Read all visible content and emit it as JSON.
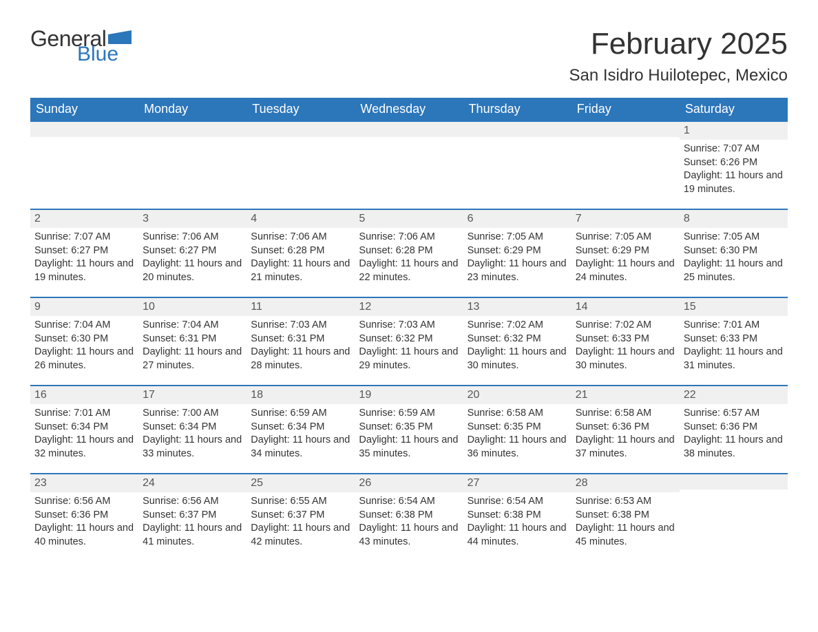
{
  "brand": {
    "word1": "General",
    "word2": "Blue",
    "flag_color": "#2c76ba"
  },
  "title": "February 2025",
  "location": "San Isidro Huilotepec, Mexico",
  "colors": {
    "header_bg": "#2c76ba",
    "header_text": "#ffffff",
    "week_divider": "#2c76ba",
    "daynum_bg": "#f0f0f0",
    "text": "#333333",
    "background": "#ffffff"
  },
  "typography": {
    "title_size_pt": 33,
    "location_size_pt": 18,
    "weekday_size_pt": 14,
    "body_size_pt": 11
  },
  "calendar": {
    "weekday_labels": [
      "Sunday",
      "Monday",
      "Tuesday",
      "Wednesday",
      "Thursday",
      "Friday",
      "Saturday"
    ],
    "first_weekday_index": 6,
    "weeks": [
      [
        null,
        null,
        null,
        null,
        null,
        null,
        {
          "n": 1,
          "sunrise": "7:07 AM",
          "sunset": "6:26 PM",
          "daylight": "11 hours and 19 minutes."
        }
      ],
      [
        {
          "n": 2,
          "sunrise": "7:07 AM",
          "sunset": "6:27 PM",
          "daylight": "11 hours and 19 minutes."
        },
        {
          "n": 3,
          "sunrise": "7:06 AM",
          "sunset": "6:27 PM",
          "daylight": "11 hours and 20 minutes."
        },
        {
          "n": 4,
          "sunrise": "7:06 AM",
          "sunset": "6:28 PM",
          "daylight": "11 hours and 21 minutes."
        },
        {
          "n": 5,
          "sunrise": "7:06 AM",
          "sunset": "6:28 PM",
          "daylight": "11 hours and 22 minutes."
        },
        {
          "n": 6,
          "sunrise": "7:05 AM",
          "sunset": "6:29 PM",
          "daylight": "11 hours and 23 minutes."
        },
        {
          "n": 7,
          "sunrise": "7:05 AM",
          "sunset": "6:29 PM",
          "daylight": "11 hours and 24 minutes."
        },
        {
          "n": 8,
          "sunrise": "7:05 AM",
          "sunset": "6:30 PM",
          "daylight": "11 hours and 25 minutes."
        }
      ],
      [
        {
          "n": 9,
          "sunrise": "7:04 AM",
          "sunset": "6:30 PM",
          "daylight": "11 hours and 26 minutes."
        },
        {
          "n": 10,
          "sunrise": "7:04 AM",
          "sunset": "6:31 PM",
          "daylight": "11 hours and 27 minutes."
        },
        {
          "n": 11,
          "sunrise": "7:03 AM",
          "sunset": "6:31 PM",
          "daylight": "11 hours and 28 minutes."
        },
        {
          "n": 12,
          "sunrise": "7:03 AM",
          "sunset": "6:32 PM",
          "daylight": "11 hours and 29 minutes."
        },
        {
          "n": 13,
          "sunrise": "7:02 AM",
          "sunset": "6:32 PM",
          "daylight": "11 hours and 30 minutes."
        },
        {
          "n": 14,
          "sunrise": "7:02 AM",
          "sunset": "6:33 PM",
          "daylight": "11 hours and 30 minutes."
        },
        {
          "n": 15,
          "sunrise": "7:01 AM",
          "sunset": "6:33 PM",
          "daylight": "11 hours and 31 minutes."
        }
      ],
      [
        {
          "n": 16,
          "sunrise": "7:01 AM",
          "sunset": "6:34 PM",
          "daylight": "11 hours and 32 minutes."
        },
        {
          "n": 17,
          "sunrise": "7:00 AM",
          "sunset": "6:34 PM",
          "daylight": "11 hours and 33 minutes."
        },
        {
          "n": 18,
          "sunrise": "6:59 AM",
          "sunset": "6:34 PM",
          "daylight": "11 hours and 34 minutes."
        },
        {
          "n": 19,
          "sunrise": "6:59 AM",
          "sunset": "6:35 PM",
          "daylight": "11 hours and 35 minutes."
        },
        {
          "n": 20,
          "sunrise": "6:58 AM",
          "sunset": "6:35 PM",
          "daylight": "11 hours and 36 minutes."
        },
        {
          "n": 21,
          "sunrise": "6:58 AM",
          "sunset": "6:36 PM",
          "daylight": "11 hours and 37 minutes."
        },
        {
          "n": 22,
          "sunrise": "6:57 AM",
          "sunset": "6:36 PM",
          "daylight": "11 hours and 38 minutes."
        }
      ],
      [
        {
          "n": 23,
          "sunrise": "6:56 AM",
          "sunset": "6:36 PM",
          "daylight": "11 hours and 40 minutes."
        },
        {
          "n": 24,
          "sunrise": "6:56 AM",
          "sunset": "6:37 PM",
          "daylight": "11 hours and 41 minutes."
        },
        {
          "n": 25,
          "sunrise": "6:55 AM",
          "sunset": "6:37 PM",
          "daylight": "11 hours and 42 minutes."
        },
        {
          "n": 26,
          "sunrise": "6:54 AM",
          "sunset": "6:38 PM",
          "daylight": "11 hours and 43 minutes."
        },
        {
          "n": 27,
          "sunrise": "6:54 AM",
          "sunset": "6:38 PM",
          "daylight": "11 hours and 44 minutes."
        },
        {
          "n": 28,
          "sunrise": "6:53 AM",
          "sunset": "6:38 PM",
          "daylight": "11 hours and 45 minutes."
        },
        null
      ]
    ],
    "labels": {
      "sunrise": "Sunrise:",
      "sunset": "Sunset:",
      "daylight": "Daylight:"
    }
  }
}
